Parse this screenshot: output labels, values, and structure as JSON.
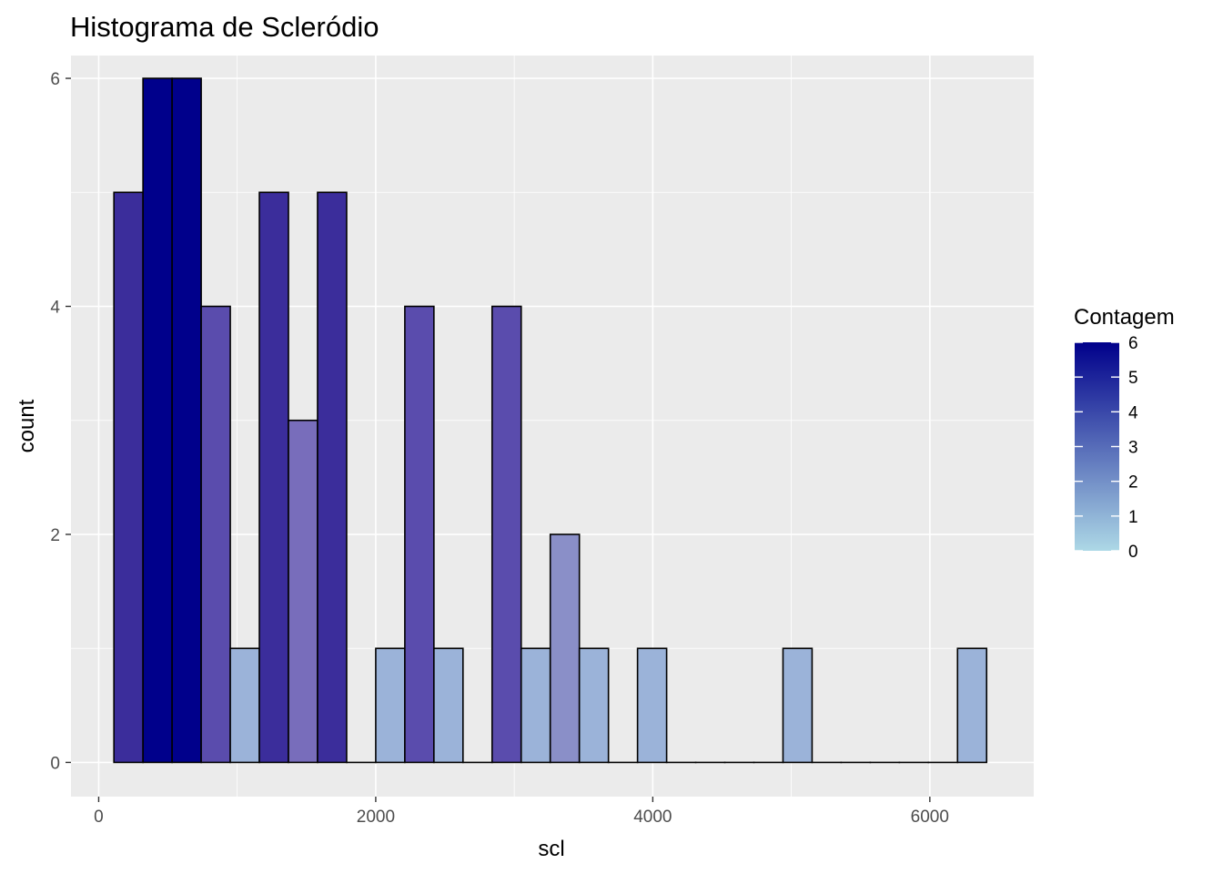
{
  "chart_data": {
    "type": "bar",
    "title": "Histograma de Scleródio",
    "xlabel": "scl",
    "ylabel": "count",
    "xlim": [
      -200,
      6750
    ],
    "ylim": [
      -0.3,
      6.2
    ],
    "x_ticks": [
      0,
      2000,
      4000,
      6000
    ],
    "y_ticks": [
      0,
      2,
      4,
      6
    ],
    "x_tick_labels": [
      "0",
      "2000",
      "4000",
      "6000"
    ],
    "y_tick_labels": [
      "0",
      "2",
      "4",
      "6"
    ],
    "bin_width": 210,
    "bins": [
      {
        "x0": 110,
        "count": 5
      },
      {
        "x0": 320,
        "count": 6
      },
      {
        "x0": 530,
        "count": 6
      },
      {
        "x0": 740,
        "count": 4
      },
      {
        "x0": 950,
        "count": 1
      },
      {
        "x0": 1160,
        "count": 5
      },
      {
        "x0": 1370,
        "count": 3
      },
      {
        "x0": 1580,
        "count": 5
      },
      {
        "x0": 1790,
        "count": 0
      },
      {
        "x0": 2000,
        "count": 1
      },
      {
        "x0": 2210,
        "count": 4
      },
      {
        "x0": 2420,
        "count": 1
      },
      {
        "x0": 2630,
        "count": 0
      },
      {
        "x0": 2840,
        "count": 4
      },
      {
        "x0": 3050,
        "count": 1
      },
      {
        "x0": 3260,
        "count": 2
      },
      {
        "x0": 3470,
        "count": 1
      },
      {
        "x0": 3680,
        "count": 0
      },
      {
        "x0": 3890,
        "count": 1
      },
      {
        "x0": 4100,
        "count": 0
      },
      {
        "x0": 4310,
        "count": 0
      },
      {
        "x0": 4520,
        "count": 0
      },
      {
        "x0": 4730,
        "count": 0
      },
      {
        "x0": 4940,
        "count": 1
      },
      {
        "x0": 5150,
        "count": 0
      },
      {
        "x0": 5360,
        "count": 0
      },
      {
        "x0": 5570,
        "count": 0
      },
      {
        "x0": 5780,
        "count": 0
      },
      {
        "x0": 5990,
        "count": 0
      },
      {
        "x0": 6200,
        "count": 1
      }
    ],
    "fill_by": "count",
    "grid": true,
    "legend": {
      "title": "Contagem",
      "placement": "right",
      "type": "colorbar",
      "min": 0,
      "max": 6,
      "labels": [
        "6",
        "5",
        "4",
        "3",
        "2",
        "1",
        "0"
      ],
      "low_color": "#add8e6",
      "high_color": "#00008b"
    },
    "colors": {
      "panel_background": "#ebebeb",
      "grid_major": "#ffffff",
      "bar_outline": "#000000",
      "count_colors": {
        "1": "#9bb3d9",
        "2": "#8a8fc8",
        "3": "#786dbb",
        "4": "#5a4cad",
        "5": "#3b2d9b",
        "6": "#00008b"
      }
    }
  }
}
